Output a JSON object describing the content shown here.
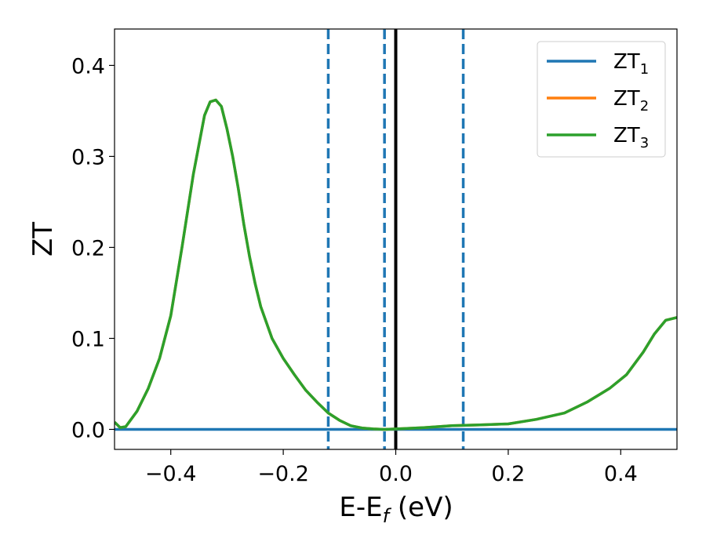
{
  "chart_data": {
    "type": "line",
    "xlabel": "E-E",
    "xlabel_sub": "f",
    "xlabel_suffix": " (eV)",
    "ylabel": "ZT",
    "xlim": [
      -0.5,
      0.5
    ],
    "ylim": [
      -0.022,
      0.44
    ],
    "xticks": [
      -0.4,
      -0.2,
      0.0,
      0.2,
      0.4
    ],
    "xtick_labels": [
      "−0.4",
      "−0.2",
      "0.0",
      "0.2",
      "0.4"
    ],
    "yticks": [
      0.0,
      0.1,
      0.2,
      0.3,
      0.4
    ],
    "ytick_labels": [
      "0.0",
      "0.1",
      "0.2",
      "0.3",
      "0.4"
    ],
    "grid": false,
    "legend_position": "top-right",
    "series": [
      {
        "name": "ZT",
        "name_sub": "1",
        "color": "#1f77b4",
        "x": [
          -0.5,
          0.5
        ],
        "y": [
          0.0,
          0.0
        ]
      },
      {
        "name": "ZT",
        "name_sub": "2",
        "color": "#ff7f0e",
        "x": [
          -0.5,
          -0.49,
          -0.48,
          -0.46,
          -0.44,
          -0.42,
          -0.4,
          -0.38,
          -0.36,
          -0.34,
          -0.33,
          -0.32,
          -0.31,
          -0.3,
          -0.29,
          -0.28,
          -0.27,
          -0.26,
          -0.25,
          -0.24,
          -0.22,
          -0.2,
          -0.18,
          -0.16,
          -0.14,
          -0.12,
          -0.1,
          -0.08,
          -0.06,
          -0.04,
          -0.02,
          0.0,
          0.05,
          0.1,
          0.15,
          0.2,
          0.25,
          0.3,
          0.34,
          0.38,
          0.41,
          0.44,
          0.46,
          0.48,
          0.5
        ],
        "y": [
          0.008,
          0.002,
          0.003,
          0.02,
          0.045,
          0.078,
          0.125,
          0.2,
          0.28,
          0.345,
          0.36,
          0.362,
          0.355,
          0.33,
          0.3,
          0.265,
          0.225,
          0.19,
          0.16,
          0.135,
          0.1,
          0.078,
          0.06,
          0.043,
          0.03,
          0.018,
          0.01,
          0.004,
          0.0015,
          0.0005,
          0.0,
          0.0005,
          0.002,
          0.004,
          0.005,
          0.006,
          0.011,
          0.018,
          0.03,
          0.045,
          0.06,
          0.085,
          0.105,
          0.12,
          0.123
        ]
      },
      {
        "name": "ZT",
        "name_sub": "3",
        "color": "#2ca02c",
        "x": [
          -0.5,
          -0.49,
          -0.48,
          -0.46,
          -0.44,
          -0.42,
          -0.4,
          -0.38,
          -0.36,
          -0.34,
          -0.33,
          -0.32,
          -0.31,
          -0.3,
          -0.29,
          -0.28,
          -0.27,
          -0.26,
          -0.25,
          -0.24,
          -0.22,
          -0.2,
          -0.18,
          -0.16,
          -0.14,
          -0.12,
          -0.1,
          -0.08,
          -0.06,
          -0.04,
          -0.02,
          0.0,
          0.05,
          0.1,
          0.15,
          0.2,
          0.25,
          0.3,
          0.34,
          0.38,
          0.41,
          0.44,
          0.46,
          0.48,
          0.5
        ],
        "y": [
          0.008,
          0.002,
          0.003,
          0.02,
          0.045,
          0.078,
          0.125,
          0.2,
          0.28,
          0.345,
          0.36,
          0.362,
          0.355,
          0.33,
          0.3,
          0.265,
          0.225,
          0.19,
          0.16,
          0.135,
          0.1,
          0.078,
          0.06,
          0.043,
          0.03,
          0.018,
          0.01,
          0.004,
          0.0015,
          0.0005,
          0.0,
          0.0005,
          0.002,
          0.004,
          0.005,
          0.006,
          0.011,
          0.018,
          0.03,
          0.045,
          0.06,
          0.085,
          0.105,
          0.12,
          0.123
        ]
      }
    ],
    "vlines": [
      {
        "x": -0.12,
        "style": "dashed",
        "color": "#1f77b4"
      },
      {
        "x": -0.02,
        "style": "dashed",
        "color": "#1f77b4"
      },
      {
        "x": 0.0,
        "style": "solid",
        "color": "#000000"
      },
      {
        "x": 0.12,
        "style": "dashed",
        "color": "#1f77b4"
      }
    ]
  }
}
